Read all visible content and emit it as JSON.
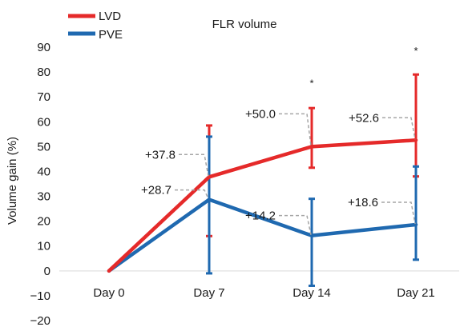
{
  "chart_data": {
    "type": "line",
    "title": "FLR volume",
    "xlabel": "",
    "ylabel": "Volume gain (%)",
    "categories": [
      "Day 0",
      "Day 7",
      "Day 14",
      "Day 21"
    ],
    "ylim": [
      -20,
      90
    ],
    "yticks": [
      -20,
      -10,
      0,
      10,
      20,
      30,
      40,
      50,
      60,
      70,
      80,
      90
    ],
    "ytick_labels": [
      "−20",
      "−10",
      "0",
      "10",
      "20",
      "30",
      "40",
      "50",
      "60",
      "70",
      "80",
      "90"
    ],
    "grid": false,
    "legend_position": "top-left",
    "series": [
      {
        "name": "LVD",
        "color": "#e52a2a",
        "values": [
          0,
          37.8,
          50.0,
          52.6
        ],
        "error_low": [
          null,
          14,
          41.5,
          38
        ],
        "error_high": [
          null,
          58.5,
          65.5,
          79
        ],
        "labels": [
          "",
          "+37.8",
          "+50.0",
          "+52.6"
        ]
      },
      {
        "name": "PVE",
        "color": "#1f69b0",
        "values": [
          0,
          28.7,
          14.2,
          18.6
        ],
        "error_low": [
          null,
          -1,
          -6,
          4.5
        ],
        "error_high": [
          null,
          54,
          29,
          42
        ],
        "labels": [
          "",
          "+28.7",
          "+14.2",
          "+18.6"
        ]
      }
    ],
    "annotations": [
      {
        "category_index": 2,
        "y": 76,
        "text": "*"
      },
      {
        "category_index": 3,
        "y": 89,
        "text": "*"
      }
    ]
  }
}
